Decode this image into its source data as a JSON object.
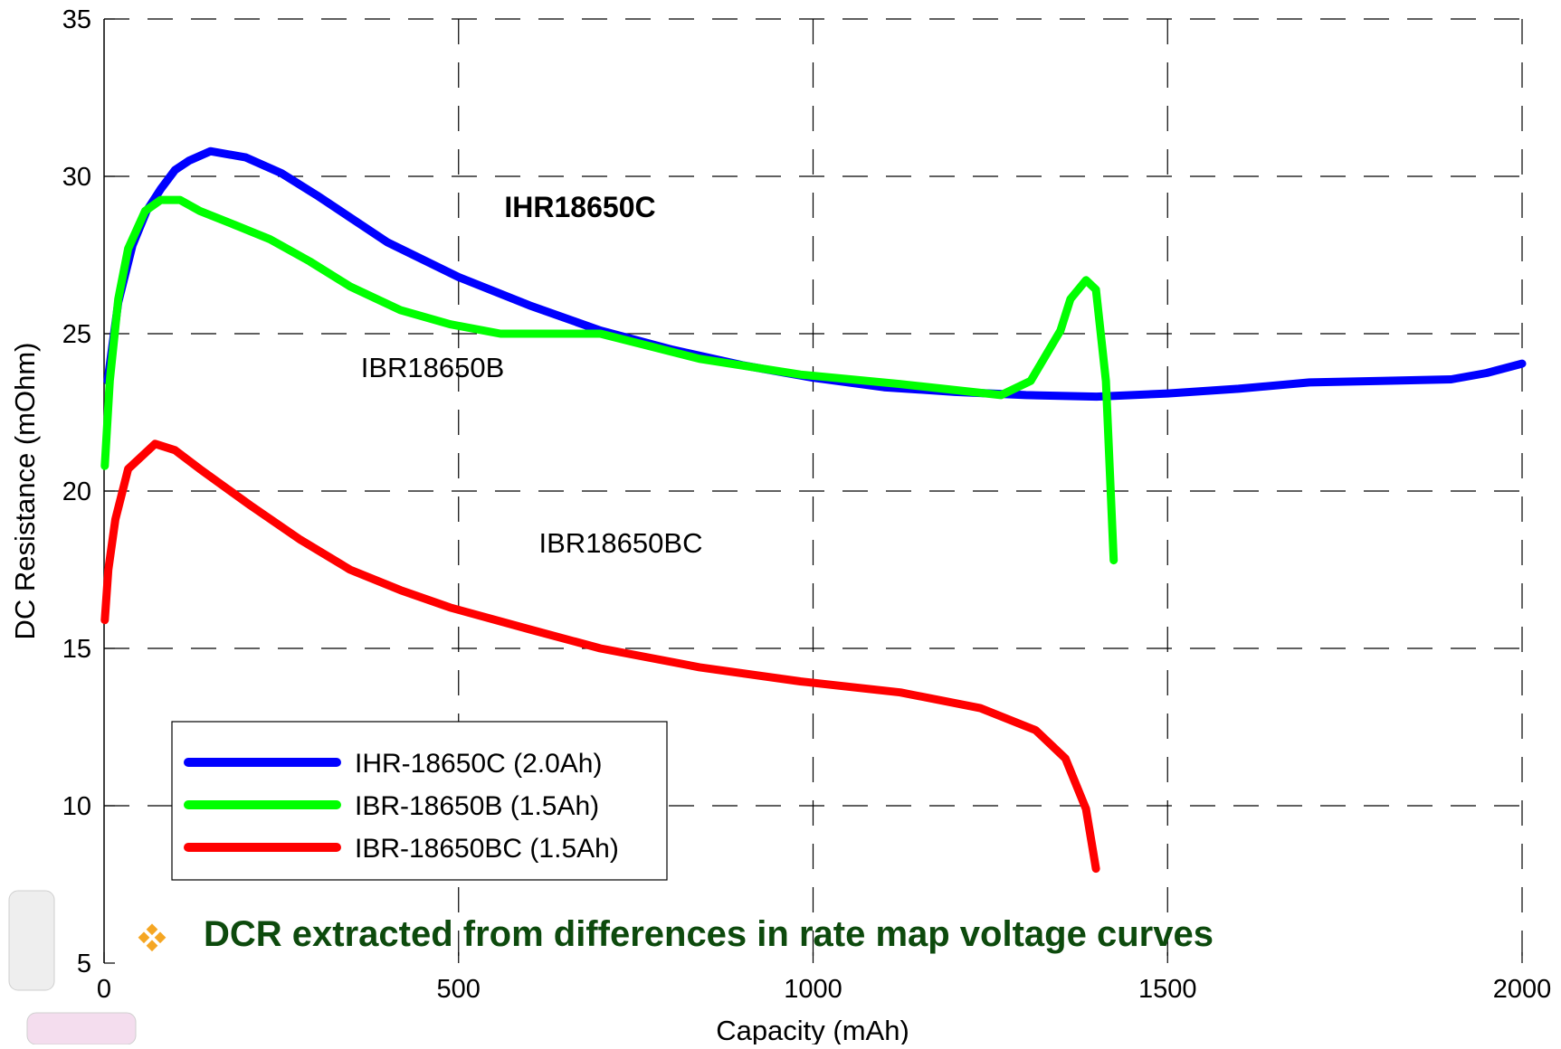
{
  "chart_data": {
    "type": "line",
    "xlabel": "Capacity (mAh)",
    "ylabel": "DC Resistance (mOhm)",
    "xlim": [
      0,
      2000
    ],
    "ylim": [
      5,
      35
    ],
    "xticks": [
      0,
      500,
      1000,
      1500,
      2000
    ],
    "yticks": [
      5,
      10,
      15,
      20,
      25,
      30,
      35
    ],
    "grid": true,
    "legend": "lower left",
    "annotations": [
      "IHR18650C",
      "IBR18650B",
      "IBR18650BC"
    ],
    "note": "DCR extracted from differences in rate map voltage curves",
    "series": [
      {
        "name": "IHR-18650C (2.0Ah)",
        "color": "#0000ff",
        "x": [
          5,
          20,
          40,
          60,
          80,
          100,
          120,
          150,
          200,
          250,
          300,
          400,
          500,
          600,
          700,
          800,
          900,
          1000,
          1100,
          1200,
          1300,
          1400,
          1500,
          1600,
          1700,
          1800,
          1900,
          1950,
          2000
        ],
        "values": [
          23.5,
          26,
          27.8,
          28.9,
          29.6,
          30.2,
          30.5,
          30.8,
          30.6,
          30.1,
          29.4,
          27.9,
          26.8,
          25.9,
          25.1,
          24.5,
          24.0,
          23.6,
          23.3,
          23.15,
          23.05,
          23.0,
          23.1,
          23.25,
          23.45,
          23.5,
          23.55,
          23.75,
          24.05
        ]
      },
      {
        "name": "IBR-18650B (1.5Ah)",
        "color": "#00ff00",
        "x": [
          1,
          8,
          20,
          34,
          58,
          80,
          107,
          135,
          185,
          234,
          290,
          347,
          418,
          488,
          559,
          700,
          770,
          840,
          982,
          1123,
          1265,
          1307,
          1349,
          1363,
          1385,
          1399,
          1413,
          1424
        ],
        "values": [
          20.8,
          23.5,
          26.1,
          27.7,
          28.9,
          29.25,
          29.25,
          28.9,
          28.45,
          28.0,
          27.3,
          26.5,
          25.75,
          25.3,
          25.0,
          25.0,
          24.6,
          24.2,
          23.7,
          23.4,
          23.05,
          23.5,
          25.1,
          26.1,
          26.7,
          26.4,
          23.5,
          17.8
        ]
      },
      {
        "name": "IBR-18650BC (1.5Ah)",
        "color": "#ff0000",
        "x": [
          1,
          6,
          16,
          34,
          72,
          100,
          135,
          206,
          277,
          347,
          418,
          488,
          601,
          700,
          840,
          982,
          1123,
          1236,
          1314,
          1356,
          1385,
          1399
        ],
        "values": [
          15.9,
          17.5,
          19.1,
          20.7,
          21.5,
          21.3,
          20.7,
          19.55,
          18.45,
          17.5,
          16.85,
          16.3,
          15.6,
          15.0,
          14.4,
          13.95,
          13.6,
          13.1,
          12.4,
          11.5,
          9.9,
          8.0
        ]
      }
    ]
  }
}
